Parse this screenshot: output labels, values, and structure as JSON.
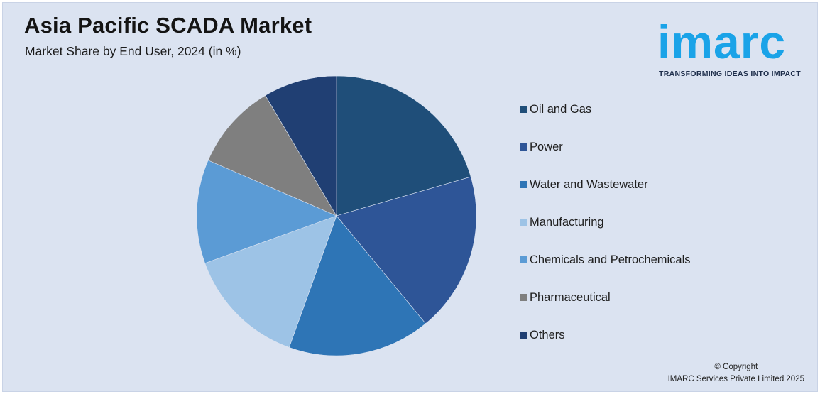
{
  "title": "Asia Pacific SCADA Market",
  "subtitle": "Market Share by End User, 2024 (in %)",
  "logo": {
    "text": "imarc",
    "tagline": "TRANSFORMING IDEAS INTO IMPACT"
  },
  "copyright": {
    "line1": "© Copyright",
    "line2": "IMARC Services Private Limited 2025"
  },
  "chart_data": {
    "type": "pie",
    "title": "Asia Pacific SCADA Market",
    "subtitle": "Market Share by End User, 2024 (in %)",
    "categories": [
      "Oil and Gas",
      "Power",
      "Water and Wastewater",
      "Manufacturing",
      "Chemicals and Petrochemicals",
      "Pharmaceutical",
      "Others"
    ],
    "values": [
      20.5,
      18.5,
      16.5,
      14,
      12,
      10,
      8.5
    ],
    "colors": [
      "#1f4e79",
      "#2e5597",
      "#2e75b6",
      "#9dc3e6",
      "#5b9bd5",
      "#7f7f7f",
      "#203f73"
    ],
    "start_angle_deg": 0,
    "direction": "clockwise",
    "legend_position": "right"
  }
}
